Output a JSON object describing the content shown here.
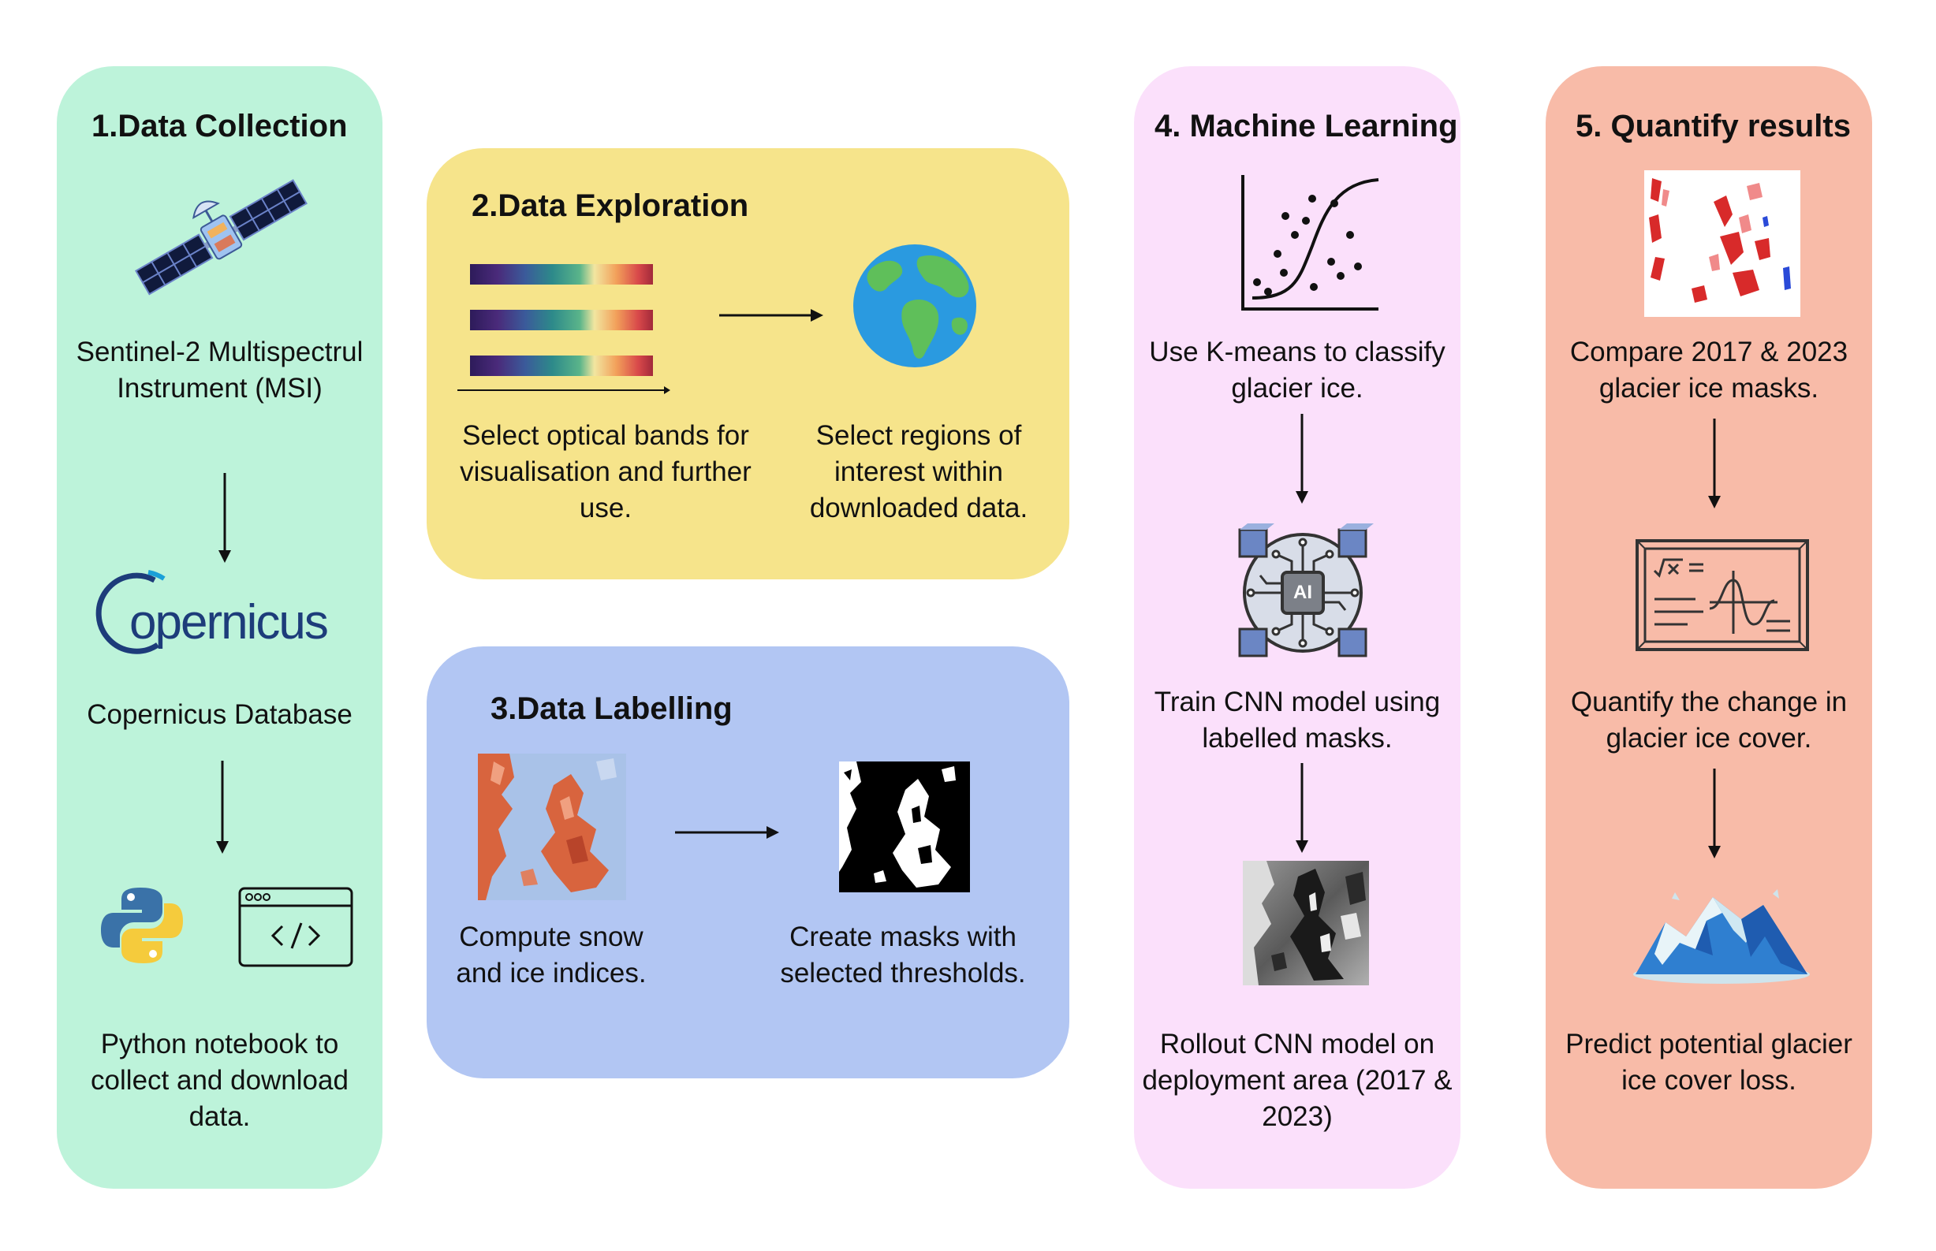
{
  "panels": [
    {
      "title": "1.Data Collection",
      "sensor": "Sentinel-2 Multispectrul Instrument (MSI)",
      "logo_text": "opernicus",
      "database": "Copernicus Database",
      "notebook": "Python notebook to collect and download data."
    },
    {
      "title": "2.Data Exploration",
      "bands_caption": "Select optical bands for visualisation and further use.",
      "regions_caption": "Select regions of interest within downloaded data."
    },
    {
      "title": "3.Data Labelling",
      "indices_caption": "Compute snow and ice indices.",
      "masks_caption": "Create masks with selected thresholds."
    },
    {
      "title": "4. Machine Learning",
      "kmeans_caption": "Use K-means to classify glacier ice.",
      "ai_chip_text": "AI",
      "cnn_caption": "Train CNN model using labelled masks.",
      "rollout_caption": "Rollout CNN model on deployment area (2017 & 2023)"
    },
    {
      "title": "5. Quantify results",
      "compare_caption": "Compare 2017 & 2023 glacier ice masks.",
      "quantify_caption": "Quantify the change in glacier ice cover.",
      "predict_caption": "Predict potential glacier ice cover loss."
    }
  ],
  "colors": {
    "panel1": "#bdf3da",
    "panel2": "#f6e48b",
    "panel3": "#b2c6f3",
    "panel4": "#fbe0fb",
    "panel5": "#f8bba8",
    "copernicus_blue": "#1d3c7a"
  },
  "icons": [
    "satellite-icon",
    "copernicus-logo",
    "python-icon",
    "code-window-icon",
    "spectral-bands-icon",
    "earth-globe-icon",
    "snow-index-map-icon",
    "binary-mask-icon",
    "scatter-sigmoid-icon",
    "ai-chip-icon",
    "grayscale-prediction-icon",
    "change-map-icon",
    "blackboard-formula-icon",
    "glacier-mountain-icon"
  ]
}
